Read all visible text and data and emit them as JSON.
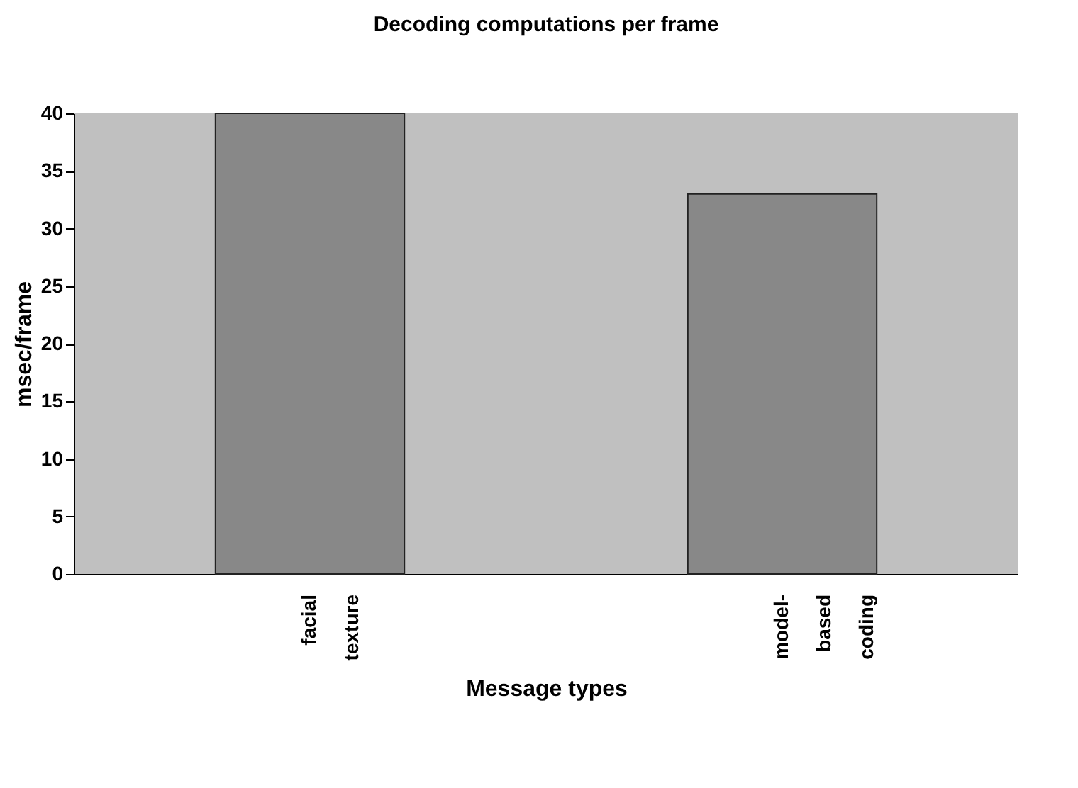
{
  "chart_data": {
    "type": "bar",
    "title": "Decoding computations per frame",
    "xlabel": "Message types",
    "ylabel": "msec/frame",
    "categories": [
      "facial texture",
      "model-based coding"
    ],
    "values": [
      40,
      33
    ],
    "color": "#888888",
    "ylim": [
      0,
      40
    ],
    "yticks": [
      0,
      5,
      10,
      15,
      20,
      25,
      30,
      35,
      40
    ],
    "grid": false
  }
}
